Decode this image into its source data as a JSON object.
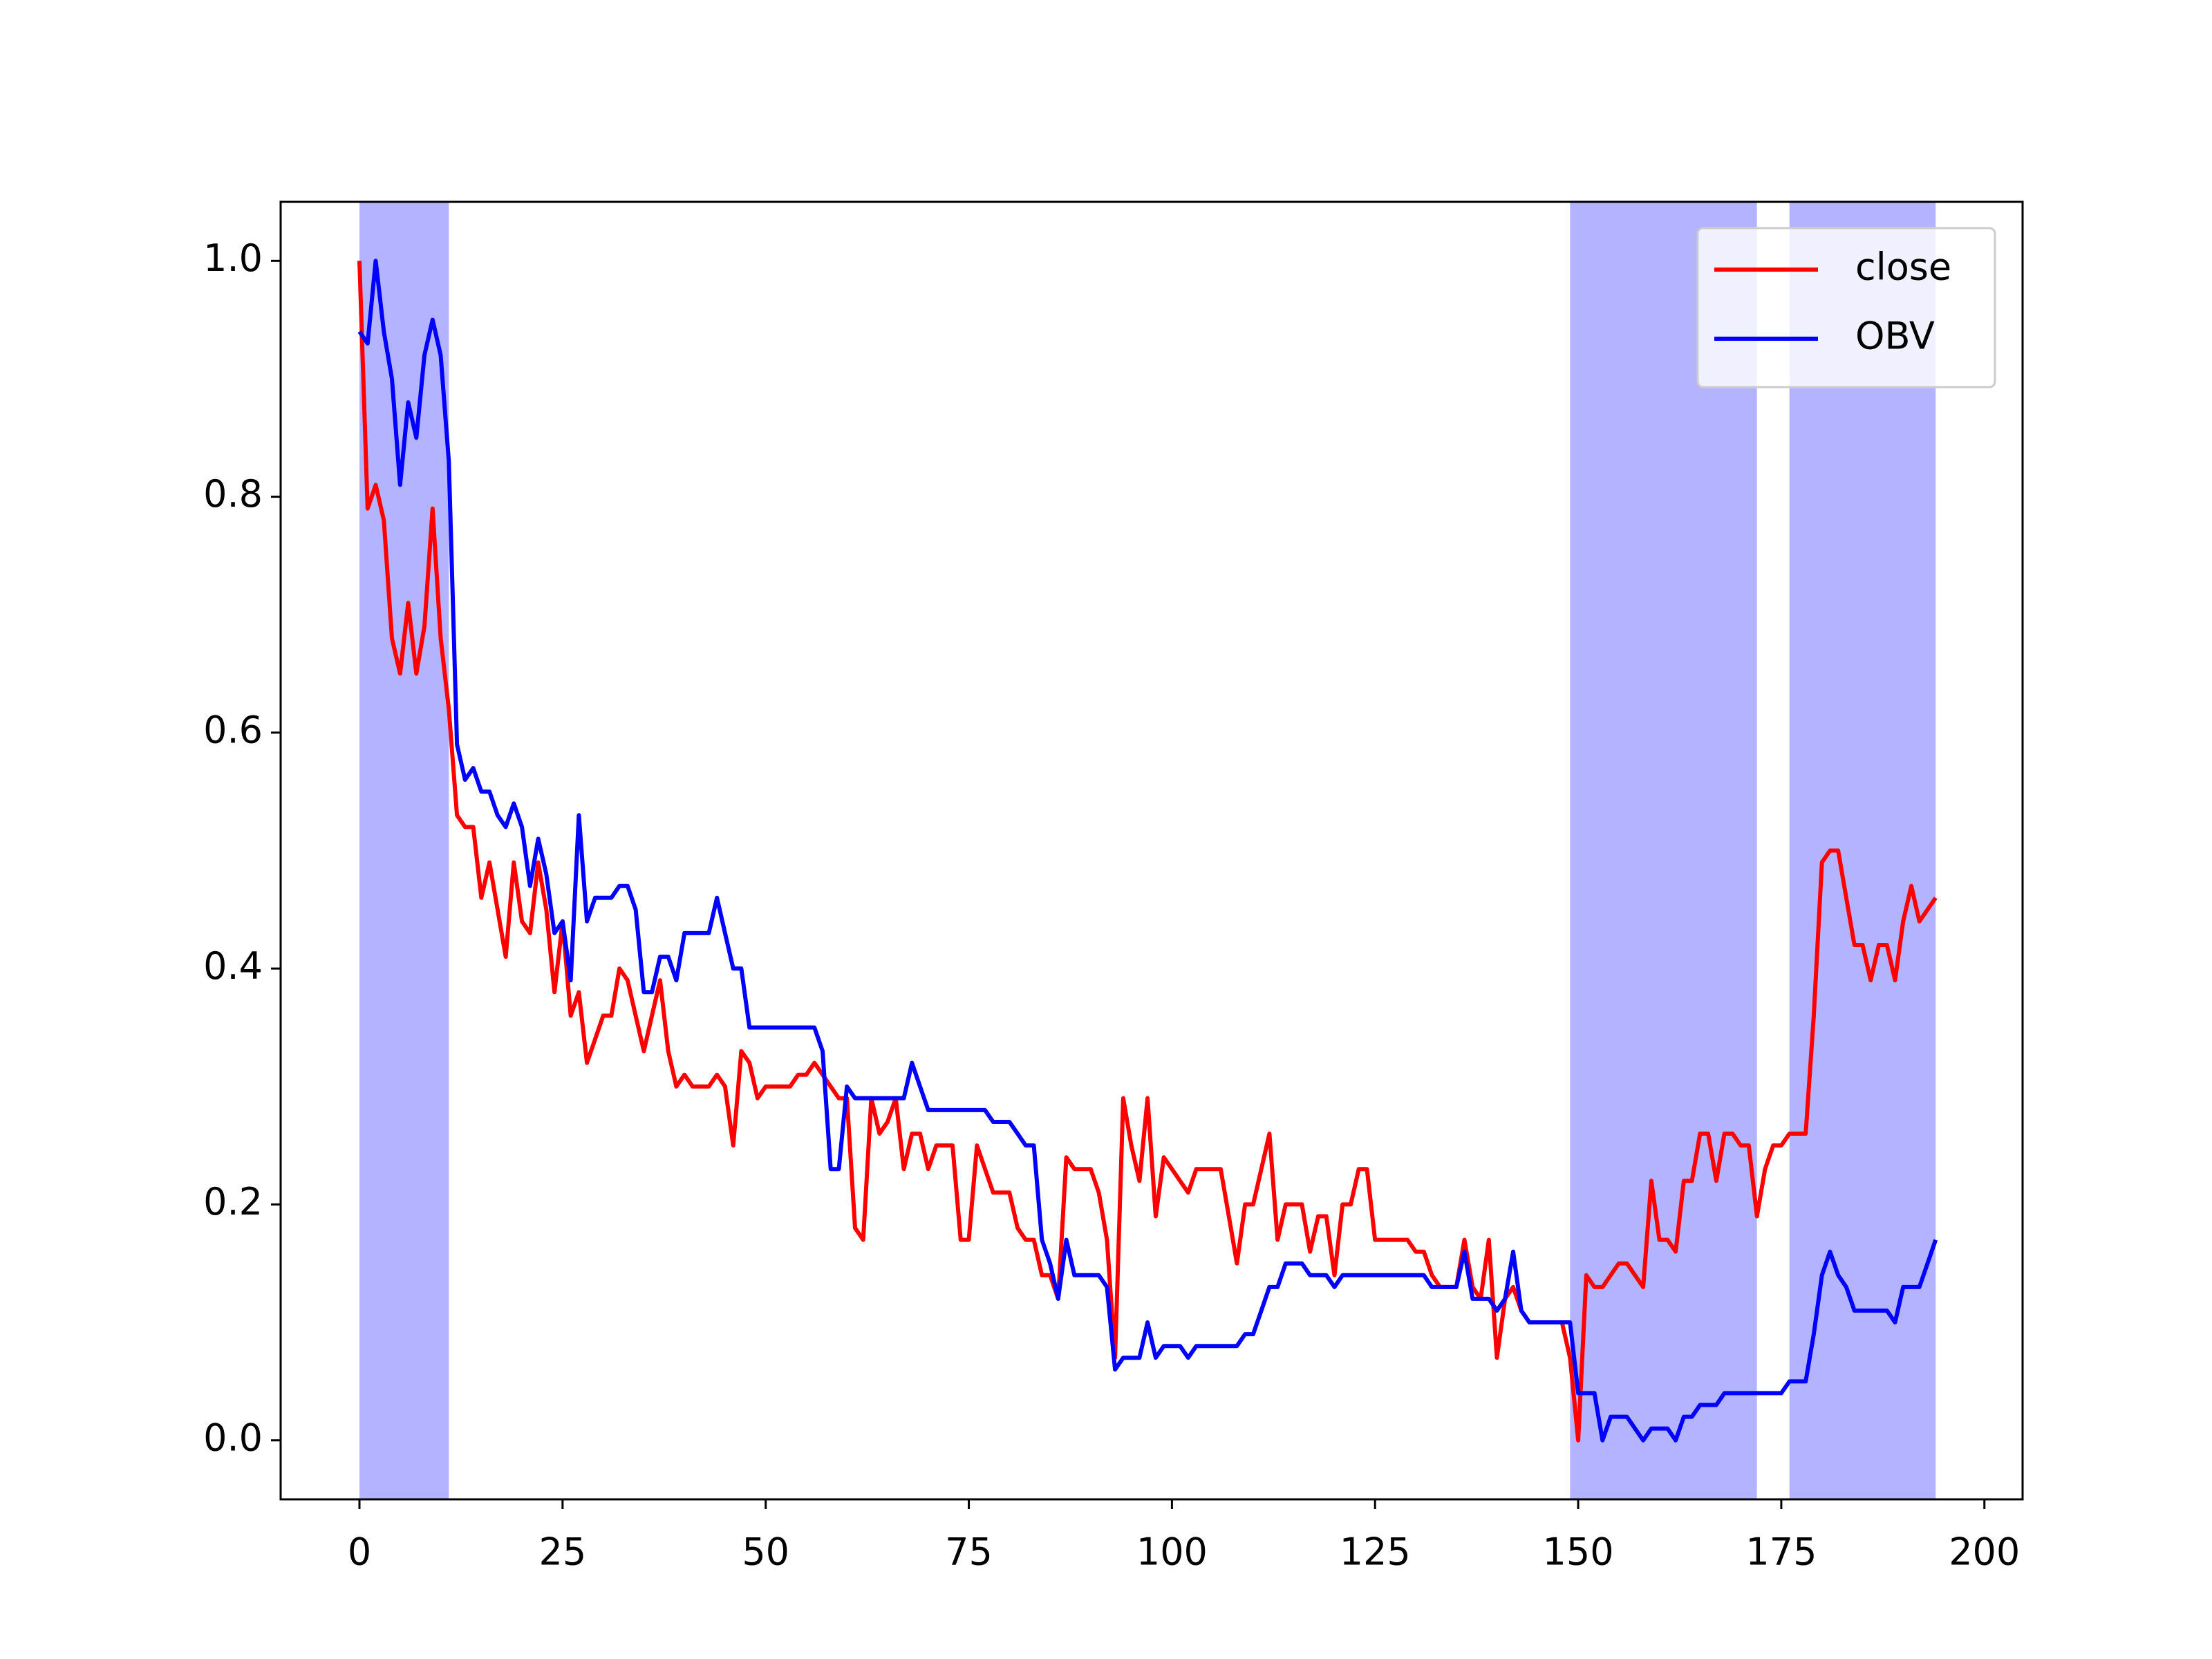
{
  "chart_data": {
    "type": "line",
    "x": [
      0,
      1,
      2,
      3,
      4,
      5,
      6,
      7,
      8,
      9,
      10,
      11,
      12,
      13,
      14,
      15,
      16,
      17,
      18,
      19,
      20,
      21,
      22,
      23,
      24,
      25,
      26,
      27,
      28,
      29,
      30,
      31,
      32,
      33,
      34,
      35,
      36,
      37,
      38,
      39,
      40,
      41,
      42,
      43,
      44,
      45,
      46,
      47,
      48,
      49,
      50,
      51,
      52,
      53,
      54,
      55,
      56,
      57,
      58,
      59,
      60,
      61,
      62,
      63,
      64,
      65,
      66,
      67,
      68,
      69,
      70,
      71,
      72,
      73,
      74,
      75,
      76,
      77,
      78,
      79,
      80,
      81,
      82,
      83,
      84,
      85,
      86,
      87,
      88,
      89,
      90,
      91,
      92,
      93,
      94,
      95,
      96,
      97,
      98,
      99,
      100,
      101,
      102,
      103,
      104,
      105,
      106,
      107,
      108,
      109,
      110,
      111,
      112,
      113,
      114,
      115,
      116,
      117,
      118,
      119,
      120,
      121,
      122,
      123,
      124,
      125,
      126,
      127,
      128,
      129,
      130,
      131,
      132,
      133,
      134,
      135,
      136,
      137,
      138,
      139,
      140,
      141,
      142,
      143,
      144,
      145,
      146,
      147,
      148,
      149,
      150,
      151,
      152,
      153,
      154,
      155,
      156,
      157,
      158,
      159,
      160,
      161,
      162,
      163,
      164,
      165,
      166,
      167,
      168,
      169,
      170,
      171,
      172,
      173,
      174,
      175,
      176,
      177,
      178,
      179,
      180,
      181,
      182,
      183,
      184,
      185,
      186,
      187,
      188,
      189,
      190,
      191,
      192,
      193,
      194
    ],
    "series": [
      {
        "name": "close",
        "color": "#ff0000",
        "values": [
          1.0,
          0.79,
          0.81,
          0.78,
          0.68,
          0.65,
          0.71,
          0.65,
          0.69,
          0.79,
          0.68,
          0.62,
          0.53,
          0.52,
          0.52,
          0.46,
          0.49,
          0.45,
          0.41,
          0.49,
          0.44,
          0.43,
          0.49,
          0.45,
          0.38,
          0.44,
          0.36,
          0.38,
          0.32,
          0.34,
          0.36,
          0.36,
          0.4,
          0.39,
          0.36,
          0.33,
          0.36,
          0.39,
          0.33,
          0.3,
          0.31,
          0.3,
          0.3,
          0.3,
          0.31,
          0.3,
          0.25,
          0.33,
          0.32,
          0.29,
          0.3,
          0.3,
          0.3,
          0.3,
          0.31,
          0.31,
          0.32,
          0.31,
          0.3,
          0.29,
          0.29,
          0.18,
          0.17,
          0.29,
          0.26,
          0.27,
          0.29,
          0.23,
          0.26,
          0.26,
          0.23,
          0.25,
          0.25,
          0.25,
          0.17,
          0.17,
          0.25,
          0.23,
          0.21,
          0.21,
          0.21,
          0.18,
          0.17,
          0.17,
          0.14,
          0.14,
          0.12,
          0.24,
          0.23,
          0.23,
          0.23,
          0.21,
          0.17,
          0.07,
          0.29,
          0.25,
          0.22,
          0.29,
          0.19,
          0.24,
          0.23,
          0.22,
          0.21,
          0.23,
          0.23,
          0.23,
          0.23,
          0.19,
          0.15,
          0.2,
          0.2,
          0.23,
          0.26,
          0.17,
          0.2,
          0.2,
          0.2,
          0.16,
          0.19,
          0.19,
          0.14,
          0.2,
          0.2,
          0.23,
          0.23,
          0.17,
          0.17,
          0.17,
          0.17,
          0.17,
          0.16,
          0.16,
          0.14,
          0.13,
          0.13,
          0.13,
          0.17,
          0.13,
          0.12,
          0.17,
          0.07,
          0.12,
          0.13,
          0.11,
          0.1,
          0.1,
          0.1,
          0.1,
          0.1,
          0.07,
          0.0,
          0.14,
          0.13,
          0.13,
          0.14,
          0.15,
          0.15,
          0.14,
          0.13,
          0.22,
          0.17,
          0.17,
          0.16,
          0.22,
          0.22,
          0.26,
          0.26,
          0.22,
          0.26,
          0.26,
          0.25,
          0.25,
          0.19,
          0.23,
          0.25,
          0.25,
          0.26,
          0.26,
          0.26,
          0.36,
          0.49,
          0.5,
          0.5,
          0.46,
          0.42,
          0.42,
          0.39,
          0.42,
          0.42,
          0.39,
          0.44,
          0.47,
          0.44,
          0.45,
          0.46
        ]
      },
      {
        "name": "OBV",
        "color": "#0000ff",
        "values": [
          0.94,
          0.93,
          1.0,
          0.94,
          0.9,
          0.81,
          0.88,
          0.85,
          0.92,
          0.95,
          0.92,
          0.83,
          0.59,
          0.56,
          0.57,
          0.55,
          0.55,
          0.53,
          0.52,
          0.54,
          0.52,
          0.47,
          0.51,
          0.48,
          0.43,
          0.44,
          0.39,
          0.53,
          0.44,
          0.46,
          0.46,
          0.46,
          0.47,
          0.47,
          0.45,
          0.38,
          0.38,
          0.41,
          0.41,
          0.39,
          0.43,
          0.43,
          0.43,
          0.43,
          0.46,
          0.43,
          0.4,
          0.4,
          0.35,
          0.35,
          0.35,
          0.35,
          0.35,
          0.35,
          0.35,
          0.35,
          0.35,
          0.33,
          0.23,
          0.23,
          0.3,
          0.29,
          0.29,
          0.29,
          0.29,
          0.29,
          0.29,
          0.29,
          0.32,
          0.3,
          0.28,
          0.28,
          0.28,
          0.28,
          0.28,
          0.28,
          0.28,
          0.28,
          0.27,
          0.27,
          0.27,
          0.26,
          0.25,
          0.25,
          0.17,
          0.15,
          0.12,
          0.17,
          0.14,
          0.14,
          0.14,
          0.14,
          0.13,
          0.06,
          0.07,
          0.07,
          0.07,
          0.1,
          0.07,
          0.08,
          0.08,
          0.08,
          0.07,
          0.08,
          0.08,
          0.08,
          0.08,
          0.08,
          0.08,
          0.09,
          0.09,
          0.11,
          0.13,
          0.13,
          0.15,
          0.15,
          0.15,
          0.14,
          0.14,
          0.14,
          0.13,
          0.14,
          0.14,
          0.14,
          0.14,
          0.14,
          0.14,
          0.14,
          0.14,
          0.14,
          0.14,
          0.14,
          0.13,
          0.13,
          0.13,
          0.13,
          0.16,
          0.12,
          0.12,
          0.12,
          0.11,
          0.12,
          0.16,
          0.11,
          0.1,
          0.1,
          0.1,
          0.1,
          0.1,
          0.1,
          0.04,
          0.04,
          0.04,
          0.0,
          0.02,
          0.02,
          0.02,
          0.01,
          0.0,
          0.01,
          0.01,
          0.01,
          0.0,
          0.02,
          0.02,
          0.03,
          0.03,
          0.03,
          0.04,
          0.04,
          0.04,
          0.04,
          0.04,
          0.04,
          0.04,
          0.04,
          0.05,
          0.05,
          0.05,
          0.09,
          0.14,
          0.16,
          0.14,
          0.13,
          0.11,
          0.11,
          0.11,
          0.11,
          0.11,
          0.1,
          0.13,
          0.13,
          0.13,
          0.15,
          0.17
        ]
      }
    ],
    "shaded_regions": [
      {
        "start": 0,
        "end": 11
      },
      {
        "start": 149,
        "end": 172
      },
      {
        "start": 176,
        "end": 194
      }
    ],
    "shade_color": "#b3b3ff",
    "xlim": [
      -9.7,
      204.7
    ],
    "ylim": [
      -0.05,
      1.05
    ],
    "xticks": [
      0,
      25,
      50,
      75,
      100,
      125,
      150,
      175,
      200
    ],
    "yticks": [
      {
        "value": 0,
        "label": "0.0"
      },
      {
        "value": 0.2,
        "label": "0.2"
      },
      {
        "value": 0.4,
        "label": "0.4"
      },
      {
        "value": 0.6,
        "label": "0.6"
      },
      {
        "value": 0.8,
        "label": "0.8"
      },
      {
        "value": 1,
        "label": "1.0"
      }
    ],
    "legend": "upper right"
  }
}
